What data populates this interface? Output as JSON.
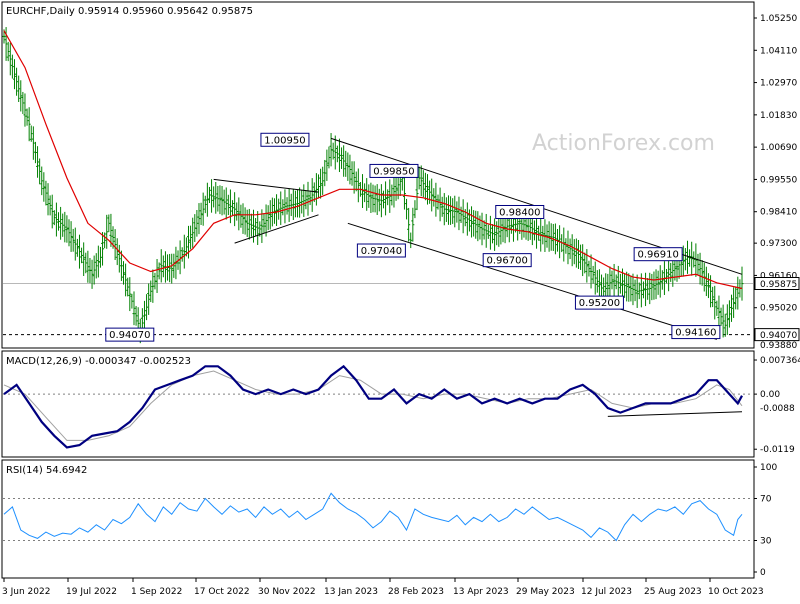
{
  "chart_data": {
    "type": "line",
    "symbol": "EURCHF",
    "timeframe": "Daily",
    "header": "EURCHF,Daily  0.95914 0.95960 0.95642 0.95875",
    "ohlc": {
      "open": 0.95914,
      "high": 0.9596,
      "low": 0.95642,
      "close": 0.95875
    },
    "watermark": "ActionForex.com",
    "colors": {
      "price": "#008000",
      "ma": "#e00000",
      "macd": "#000080",
      "signal": "#a0a0a0",
      "rsi": "#1e90ff"
    },
    "x_axis_labels": [
      "3 Jun 2022",
      "19 Jul 2022",
      "1 Sep 2022",
      "17 Oct 2022",
      "30 Nov 2022",
      "13 Jan 2023",
      "28 Feb 2023",
      "13 Apr 2023",
      "29 May 2023",
      "12 Jul 2023",
      "25 Aug 2023",
      "10 Oct 2023"
    ],
    "price_panel": {
      "y_ticks": [
        "1.05250",
        "1.04110",
        "1.02970",
        "1.01830",
        "1.00690",
        "0.99550",
        "0.98410",
        "0.97300",
        "0.96160",
        "0.95020",
        "0.93880"
      ],
      "ylim": [
        0.9388,
        1.0525
      ],
      "current_price": "0.95875",
      "current_price_value": 0.95875,
      "support_line": "0.94070",
      "support_value": 0.9407,
      "close_series": [
        [
          0,
          1.046
        ],
        [
          6,
          1.03
        ],
        [
          12,
          1.015
        ],
        [
          18,
          0.995
        ],
        [
          24,
          0.982
        ],
        [
          30,
          0.978
        ],
        [
          36,
          0.97
        ],
        [
          42,
          0.962
        ],
        [
          46,
          0.968
        ],
        [
          50,
          0.98
        ],
        [
          54,
          0.97
        ],
        [
          58,
          0.96
        ],
        [
          62,
          0.95
        ],
        [
          65,
          0.942
        ],
        [
          70,
          0.956
        ],
        [
          75,
          0.965
        ],
        [
          80,
          0.964
        ],
        [
          86,
          0.97
        ],
        [
          92,
          0.98
        ],
        [
          98,
          0.99
        ],
        [
          104,
          0.988
        ],
        [
          110,
          0.985
        ],
        [
          116,
          0.98
        ],
        [
          122,
          0.978
        ],
        [
          128,
          0.984
        ],
        [
          134,
          0.986
        ],
        [
          140,
          0.987
        ],
        [
          146,
          0.989
        ],
        [
          152,
          0.995
        ],
        [
          156,
          1.006
        ],
        [
          160,
          1.004
        ],
        [
          165,
          0.999
        ],
        [
          170,
          0.992
        ],
        [
          175,
          0.989
        ],
        [
          180,
          0.988
        ],
        [
          185,
          0.99
        ],
        [
          190,
          0.996
        ],
        [
          194,
          0.974
        ],
        [
          198,
          0.996
        ],
        [
          204,
          0.99
        ],
        [
          210,
          0.985
        ],
        [
          216,
          0.984
        ],
        [
          222,
          0.981
        ],
        [
          228,
          0.978
        ],
        [
          234,
          0.976
        ],
        [
          240,
          0.979
        ],
        [
          246,
          0.98
        ],
        [
          250,
          0.979
        ],
        [
          256,
          0.976
        ],
        [
          262,
          0.975
        ],
        [
          268,
          0.972
        ],
        [
          274,
          0.969
        ],
        [
          280,
          0.963
        ],
        [
          286,
          0.956
        ],
        [
          290,
          0.96
        ],
        [
          296,
          0.958
        ],
        [
          302,
          0.956
        ],
        [
          308,
          0.957
        ],
        [
          314,
          0.96
        ],
        [
          320,
          0.964
        ],
        [
          326,
          0.968
        ],
        [
          330,
          0.967
        ],
        [
          336,
          0.958
        ],
        [
          340,
          0.95
        ],
        [
          344,
          0.944
        ],
        [
          348,
          0.952
        ],
        [
          352,
          0.9587
        ]
      ],
      "ma_series": [
        [
          0,
          1.048
        ],
        [
          10,
          1.035
        ],
        [
          20,
          1.015
        ],
        [
          30,
          0.996
        ],
        [
          40,
          0.98
        ],
        [
          50,
          0.974
        ],
        [
          60,
          0.966
        ],
        [
          70,
          0.963
        ],
        [
          80,
          0.965
        ],
        [
          90,
          0.971
        ],
        [
          100,
          0.98
        ],
        [
          110,
          0.983
        ],
        [
          120,
          0.983
        ],
        [
          130,
          0.984
        ],
        [
          140,
          0.986
        ],
        [
          150,
          0.989
        ],
        [
          160,
          0.992
        ],
        [
          170,
          0.992
        ],
        [
          180,
          0.99
        ],
        [
          190,
          0.99
        ],
        [
          200,
          0.989
        ],
        [
          210,
          0.987
        ],
        [
          220,
          0.984
        ],
        [
          230,
          0.98
        ],
        [
          240,
          0.978
        ],
        [
          250,
          0.977
        ],
        [
          260,
          0.975
        ],
        [
          270,
          0.972
        ],
        [
          280,
          0.968
        ],
        [
          290,
          0.964
        ],
        [
          300,
          0.961
        ],
        [
          310,
          0.96
        ],
        [
          320,
          0.961
        ],
        [
          330,
          0.962
        ],
        [
          340,
          0.959
        ],
        [
          352,
          0.957
        ]
      ],
      "trend_lines": [
        {
          "name": "upper-channel",
          "points": [
            [
              156,
              1.01
            ],
            [
              352,
              0.962
            ]
          ]
        },
        {
          "name": "lower-channel",
          "points": [
            [
              164,
              0.98
            ],
            [
              340,
              0.939
            ]
          ]
        },
        {
          "name": "triangle-upper",
          "points": [
            [
              100,
              0.9955
            ],
            [
              150,
              0.991
            ]
          ]
        },
        {
          "name": "triangle-lower",
          "points": [
            [
              110,
              0.973
            ],
            [
              150,
              0.983
            ]
          ]
        }
      ],
      "level_labels": [
        {
          "text": "1.00950",
          "x": 134,
          "y": 1.0095
        },
        {
          "text": "0.99850",
          "x": 186,
          "y": 0.9985
        },
        {
          "text": "0.98400",
          "x": 246,
          "y": 0.984
        },
        {
          "text": "0.97040",
          "x": 180,
          "y": 0.9704
        },
        {
          "text": "0.96700",
          "x": 240,
          "y": 0.967
        },
        {
          "text": "0.96910",
          "x": 312,
          "y": 0.9691
        },
        {
          "text": "0.95200",
          "x": 284,
          "y": 0.952
        },
        {
          "text": "0.94070",
          "x": 60,
          "y": 0.9407
        },
        {
          "text": "0.94160",
          "x": 330,
          "y": 0.9416
        }
      ]
    },
    "macd_panel": {
      "label": "MACD(12,26,9) -0.000347 -0.002523",
      "y_ticks": [
        "0.007364",
        "0.00",
        "-0.0119"
      ],
      "ylim": [
        -0.0125,
        0.0078
      ],
      "zero_line": 0.0,
      "lower_bar_label": "-0.0088",
      "macd_series": [
        [
          0,
          0.0
        ],
        [
          6,
          0.002
        ],
        [
          12,
          -0.002
        ],
        [
          18,
          -0.006
        ],
        [
          24,
          -0.009
        ],
        [
          30,
          -0.0115
        ],
        [
          36,
          -0.011
        ],
        [
          42,
          -0.009
        ],
        [
          48,
          -0.0085
        ],
        [
          54,
          -0.008
        ],
        [
          60,
          -0.006
        ],
        [
          66,
          -0.003
        ],
        [
          72,
          0.001
        ],
        [
          78,
          0.002
        ],
        [
          84,
          0.003
        ],
        [
          90,
          0.004
        ],
        [
          96,
          0.006
        ],
        [
          102,
          0.006
        ],
        [
          108,
          0.004
        ],
        [
          114,
          0.001
        ],
        [
          120,
          0.0
        ],
        [
          126,
          0.001
        ],
        [
          132,
          0.0
        ],
        [
          138,
          0.001
        ],
        [
          144,
          0.0
        ],
        [
          150,
          0.001
        ],
        [
          156,
          0.004
        ],
        [
          162,
          0.006
        ],
        [
          168,
          0.003
        ],
        [
          174,
          -0.001
        ],
        [
          180,
          -0.001
        ],
        [
          186,
          0.001
        ],
        [
          192,
          -0.002
        ],
        [
          198,
          0.0
        ],
        [
          204,
          -0.001
        ],
        [
          210,
          0.001
        ],
        [
          216,
          -0.001
        ],
        [
          222,
          0.0
        ],
        [
          228,
          -0.002
        ],
        [
          234,
          -0.001
        ],
        [
          240,
          -0.002
        ],
        [
          246,
          -0.001
        ],
        [
          252,
          -0.002
        ],
        [
          258,
          -0.001
        ],
        [
          264,
          -0.001
        ],
        [
          270,
          0.001
        ],
        [
          276,
          0.002
        ],
        [
          282,
          0.0
        ],
        [
          288,
          -0.003
        ],
        [
          294,
          -0.004
        ],
        [
          300,
          -0.003
        ],
        [
          306,
          -0.002
        ],
        [
          312,
          -0.002
        ],
        [
          318,
          -0.002
        ],
        [
          324,
          -0.001
        ],
        [
          330,
          0.0
        ],
        [
          336,
          0.003
        ],
        [
          340,
          0.003
        ],
        [
          346,
          0.0
        ],
        [
          350,
          -0.002
        ],
        [
          352,
          -0.000347
        ]
      ],
      "signal_series": [
        [
          0,
          0.002
        ],
        [
          10,
          0.0
        ],
        [
          20,
          -0.005
        ],
        [
          30,
          -0.01
        ],
        [
          40,
          -0.01
        ],
        [
          50,
          -0.009
        ],
        [
          60,
          -0.007
        ],
        [
          70,
          -0.002
        ],
        [
          80,
          0.002
        ],
        [
          90,
          0.004
        ],
        [
          100,
          0.005
        ],
        [
          110,
          0.003
        ],
        [
          120,
          0.001
        ],
        [
          130,
          0.0
        ],
        [
          140,
          0.0
        ],
        [
          150,
          0.001
        ],
        [
          160,
          0.004
        ],
        [
          170,
          0.003
        ],
        [
          180,
          0.0
        ],
        [
          190,
          0.0
        ],
        [
          200,
          -0.001
        ],
        [
          210,
          0.0
        ],
        [
          220,
          0.0
        ],
        [
          230,
          -0.001
        ],
        [
          240,
          -0.002
        ],
        [
          250,
          -0.001
        ],
        [
          260,
          -0.001
        ],
        [
          270,
          0.0
        ],
        [
          280,
          0.001
        ],
        [
          290,
          -0.002
        ],
        [
          300,
          -0.003
        ],
        [
          310,
          -0.002
        ],
        [
          320,
          -0.002
        ],
        [
          330,
          -0.001
        ],
        [
          340,
          0.002
        ],
        [
          346,
          0.001
        ],
        [
          352,
          -0.002523
        ]
      ],
      "trend_line": [
        [
          288,
          -0.0048
        ],
        [
          352,
          -0.0038
        ]
      ]
    },
    "rsi_panel": {
      "label": "RSI(14) 54.6942",
      "y_ticks": [
        "100",
        "70",
        "30",
        "0"
      ],
      "ylim": [
        0,
        100
      ],
      "levels": [
        70,
        30
      ],
      "rsi_series": [
        [
          0,
          55
        ],
        [
          4,
          62
        ],
        [
          8,
          40
        ],
        [
          12,
          35
        ],
        [
          16,
          32
        ],
        [
          20,
          38
        ],
        [
          24,
          34
        ],
        [
          28,
          37
        ],
        [
          32,
          36
        ],
        [
          36,
          42
        ],
        [
          40,
          38
        ],
        [
          44,
          45
        ],
        [
          48,
          40
        ],
        [
          52,
          50
        ],
        [
          56,
          46
        ],
        [
          60,
          52
        ],
        [
          64,
          65
        ],
        [
          68,
          55
        ],
        [
          72,
          48
        ],
        [
          76,
          62
        ],
        [
          80,
          55
        ],
        [
          84,
          66
        ],
        [
          88,
          60
        ],
        [
          92,
          58
        ],
        [
          96,
          70
        ],
        [
          100,
          62
        ],
        [
          104,
          55
        ],
        [
          108,
          63
        ],
        [
          112,
          57
        ],
        [
          116,
          60
        ],
        [
          120,
          52
        ],
        [
          124,
          62
        ],
        [
          128,
          55
        ],
        [
          132,
          60
        ],
        [
          136,
          52
        ],
        [
          140,
          58
        ],
        [
          144,
          50
        ],
        [
          148,
          55
        ],
        [
          152,
          60
        ],
        [
          156,
          75
        ],
        [
          160,
          66
        ],
        [
          164,
          60
        ],
        [
          168,
          56
        ],
        [
          172,
          50
        ],
        [
          176,
          42
        ],
        [
          180,
          48
        ],
        [
          184,
          58
        ],
        [
          188,
          52
        ],
        [
          192,
          40
        ],
        [
          196,
          60
        ],
        [
          200,
          55
        ],
        [
          204,
          52
        ],
        [
          208,
          50
        ],
        [
          212,
          48
        ],
        [
          216,
          54
        ],
        [
          220,
          45
        ],
        [
          224,
          52
        ],
        [
          228,
          48
        ],
        [
          232,
          55
        ],
        [
          236,
          48
        ],
        [
          240,
          52
        ],
        [
          244,
          60
        ],
        [
          248,
          55
        ],
        [
          252,
          62
        ],
        [
          256,
          56
        ],
        [
          260,
          50
        ],
        [
          264,
          52
        ],
        [
          268,
          48
        ],
        [
          272,
          44
        ],
        [
          276,
          40
        ],
        [
          280,
          33
        ],
        [
          284,
          42
        ],
        [
          288,
          38
        ],
        [
          292,
          30
        ],
        [
          296,
          45
        ],
        [
          300,
          55
        ],
        [
          304,
          48
        ],
        [
          308,
          55
        ],
        [
          312,
          60
        ],
        [
          316,
          58
        ],
        [
          320,
          62
        ],
        [
          324,
          55
        ],
        [
          328,
          65
        ],
        [
          332,
          68
        ],
        [
          336,
          60
        ],
        [
          340,
          55
        ],
        [
          344,
          40
        ],
        [
          348,
          35
        ],
        [
          350,
          50
        ],
        [
          352,
          55
        ]
      ]
    }
  }
}
